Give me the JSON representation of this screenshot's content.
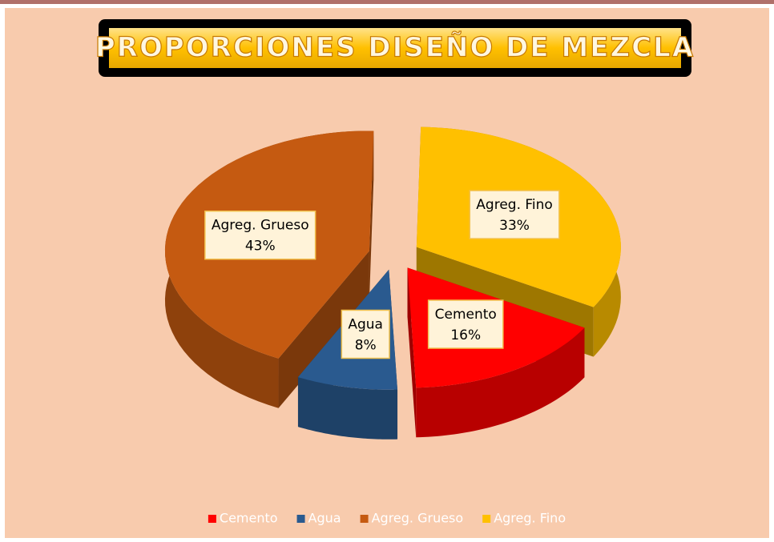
{
  "chart_data": {
    "type": "pie",
    "title": "PROPORCIONES DISEÑO DE MEZCLA",
    "categories": [
      "Cemento",
      "Agua",
      "Agreg. Grueso",
      "Agreg. Fino"
    ],
    "values": [
      16,
      8,
      43,
      33
    ],
    "value_labels": [
      "16%",
      "8%",
      "43%",
      "33%"
    ],
    "colors": [
      "#ff0000",
      "#2a5a8f",
      "#c55a11",
      "#ffc000"
    ],
    "legend": "bottom"
  }
}
